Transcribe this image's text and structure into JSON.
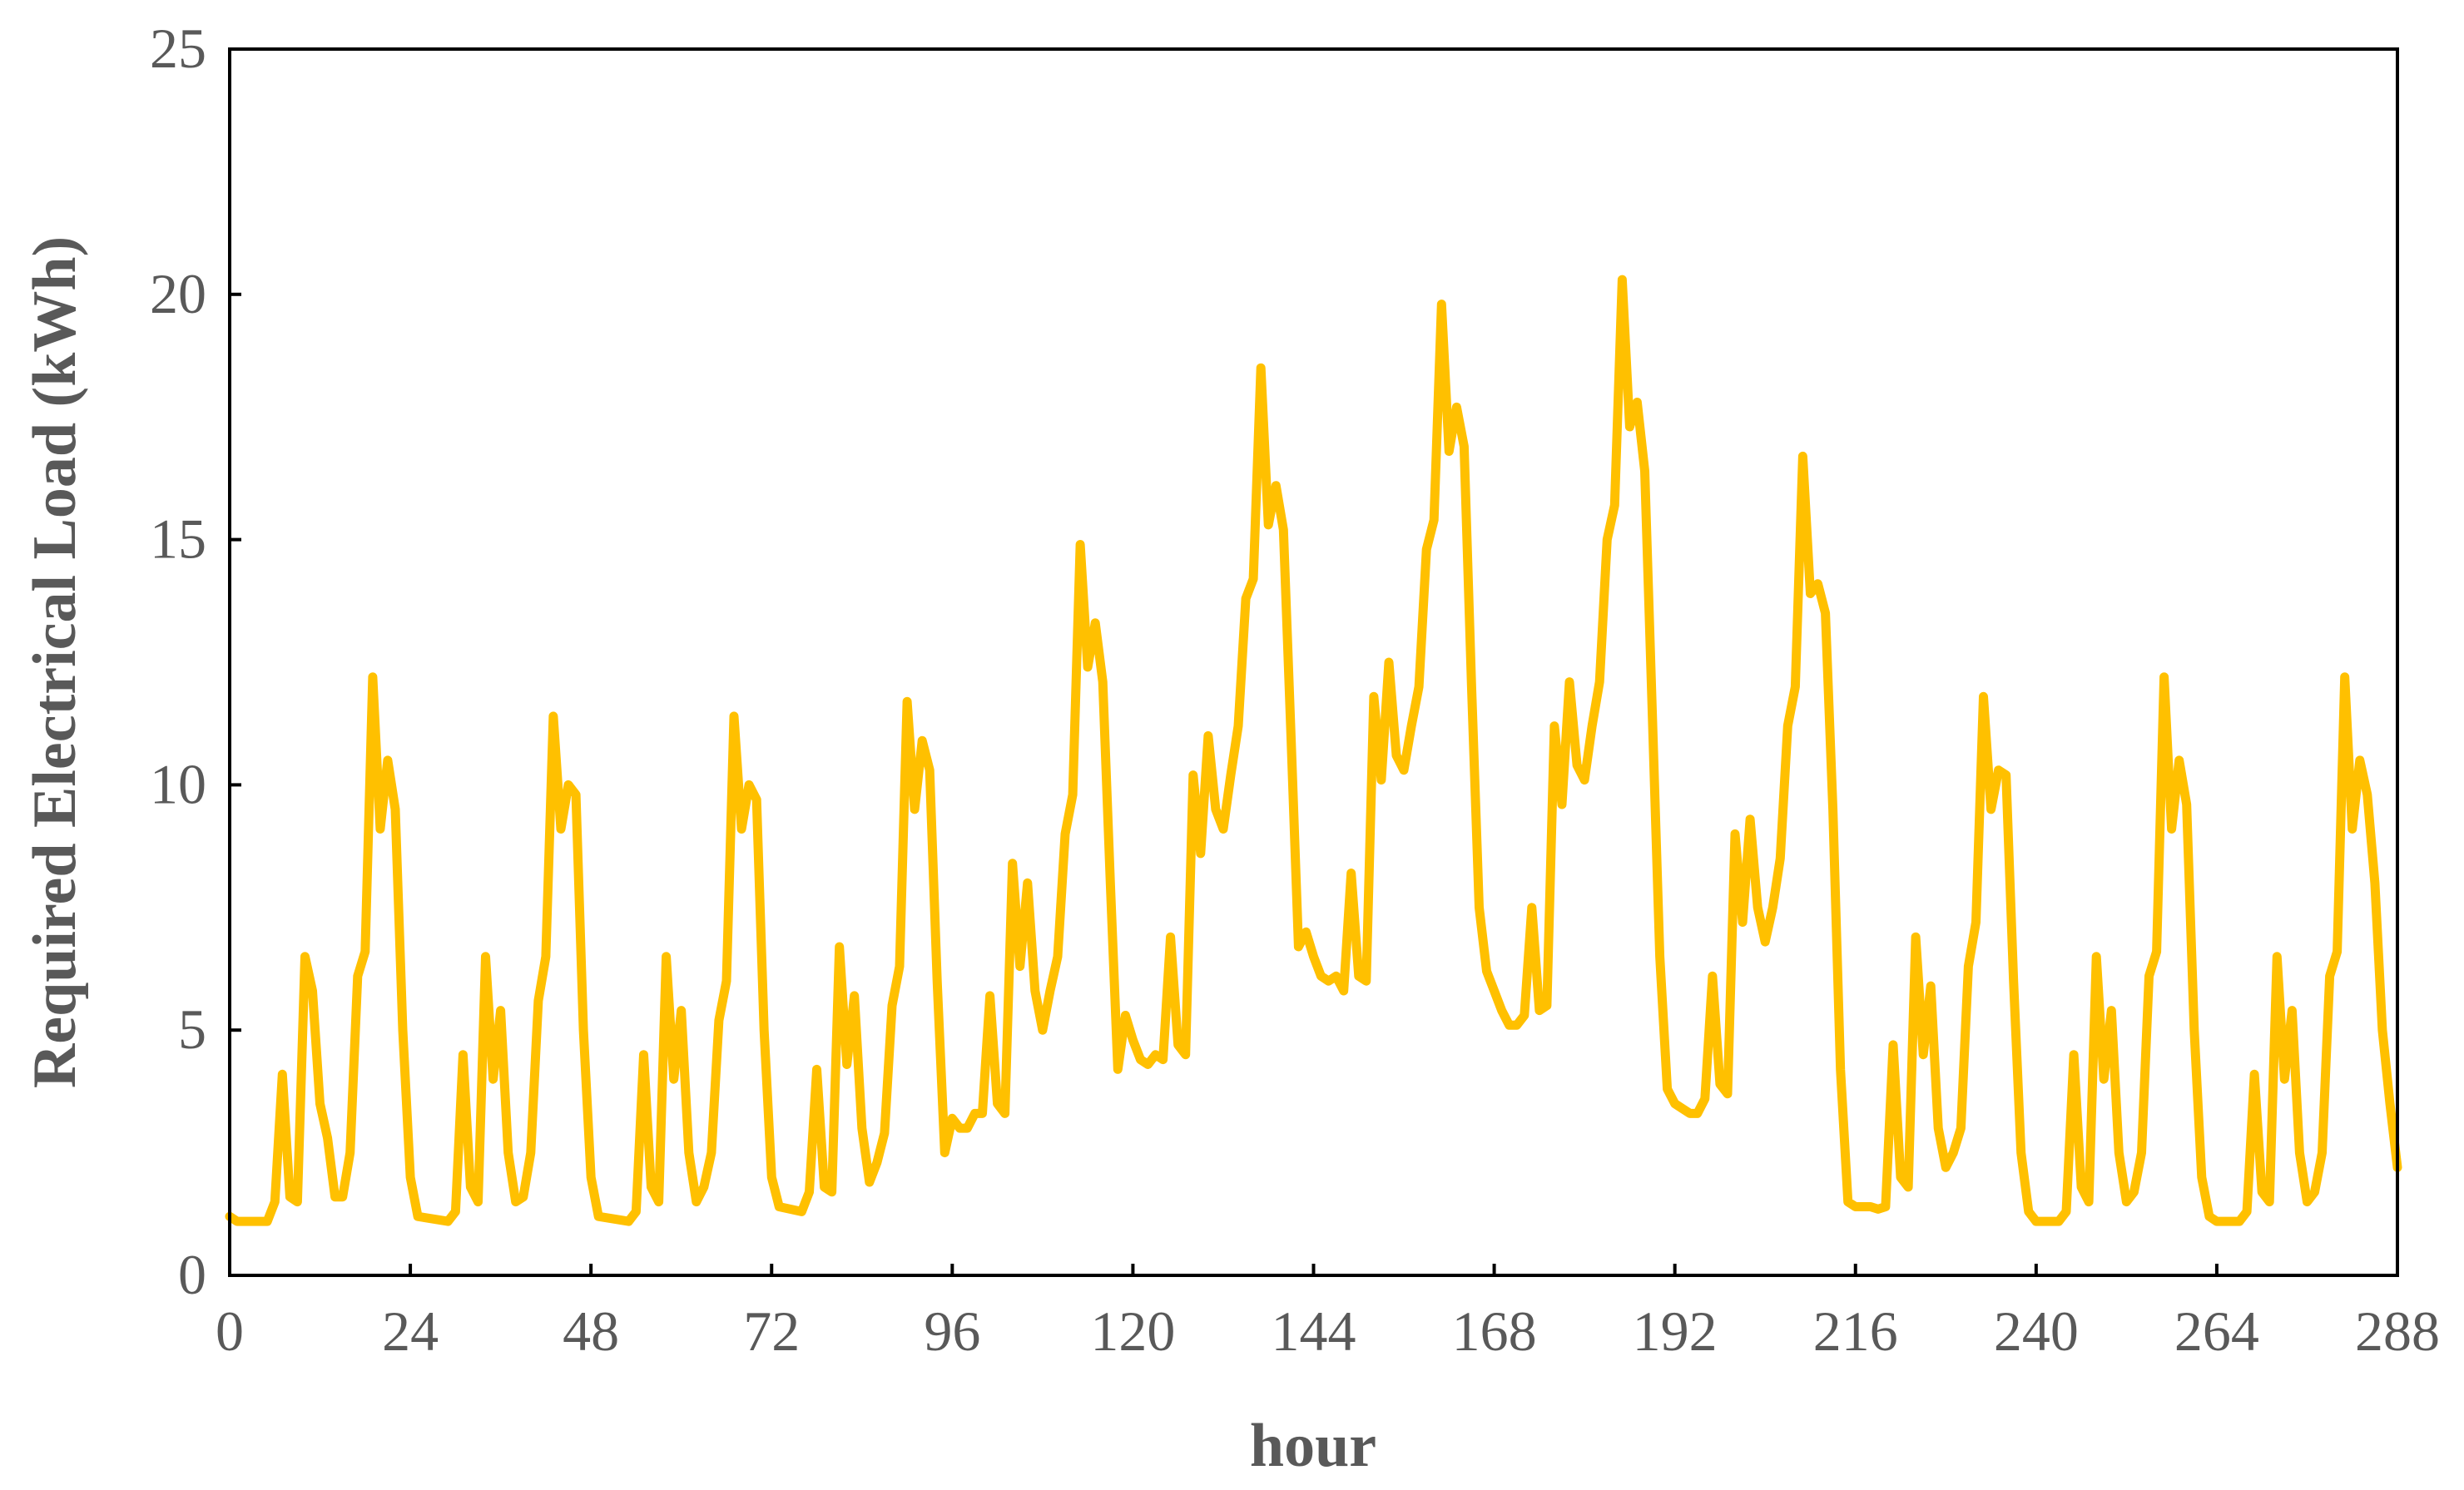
{
  "chart_data": {
    "type": "line",
    "xlabel": "hour",
    "ylabel": "Required Electrical Load (kWh)",
    "color": "#FFC000",
    "x": [
      0,
      1,
      5,
      6,
      7,
      8,
      9,
      10,
      11,
      12,
      13,
      14,
      15,
      16,
      17,
      18,
      19,
      20,
      21,
      22,
      23,
      24,
      25,
      29,
      30,
      31,
      32,
      33,
      34,
      35,
      36,
      37,
      38,
      39,
      40,
      41,
      42,
      43,
      44,
      45,
      46,
      47,
      48,
      49,
      53,
      54,
      55,
      56,
      57,
      58,
      59,
      60,
      61,
      62,
      63,
      64,
      65,
      66,
      67,
      68,
      69,
      70,
      71,
      72,
      73,
      76,
      77,
      78,
      79,
      80,
      81,
      82,
      83,
      84,
      85,
      86,
      87,
      88,
      89,
      90,
      91,
      92,
      93,
      94,
      95,
      96,
      97,
      98,
      99,
      100,
      101,
      102,
      103,
      104,
      105,
      106,
      107,
      108,
      109,
      110,
      111,
      112,
      113,
      114,
      115,
      116,
      117,
      118,
      119,
      120,
      121,
      122,
      123,
      124,
      125,
      126,
      127,
      128,
      129,
      130,
      131,
      132,
      133,
      134,
      135,
      136,
      137,
      138,
      139,
      140,
      141,
      142,
      143,
      144,
      145,
      146,
      147,
      148,
      149,
      150,
      151,
      152,
      153,
      154,
      155,
      156,
      157,
      158,
      159,
      160,
      161,
      162,
      163,
      164,
      165,
      166,
      167,
      168,
      169,
      170,
      171,
      172,
      173,
      174,
      175,
      176,
      177,
      178,
      179,
      180,
      181,
      182,
      183,
      184,
      185,
      186,
      187,
      188,
      189,
      190,
      191,
      192,
      193,
      194,
      195,
      196,
      197,
      198,
      199,
      200,
      201,
      202,
      203,
      204,
      205,
      206,
      207,
      208,
      209,
      210,
      211,
      212,
      213,
      214,
      215,
      216,
      217,
      218,
      219,
      220,
      221,
      222,
      223,
      224,
      225,
      226,
      227,
      228,
      229,
      230,
      231,
      232,
      233,
      234,
      235,
      236,
      237,
      238,
      239,
      240,
      243,
      244,
      245,
      246,
      247,
      248,
      249,
      250,
      251,
      252,
      253,
      254,
      255,
      256,
      257,
      258,
      259,
      260,
      261,
      262,
      263,
      264,
      267,
      268,
      269,
      270,
      271,
      272,
      273,
      274,
      275,
      276,
      277,
      278,
      279,
      280,
      281,
      282,
      283,
      284,
      285,
      286,
      287,
      288
    ],
    "values": [
      1.2,
      1.1,
      1.1,
      1.5,
      4.1,
      1.6,
      1.5,
      6.5,
      5.8,
      3.5,
      2.8,
      1.6,
      1.6,
      2.5,
      6.1,
      6.6,
      12.2,
      9.1,
      10.5,
      9.5,
      5,
      2,
      1.2,
      1.1,
      1.3,
      4.5,
      1.8,
      1.5,
      6.5,
      4.0,
      5.4,
      2.5,
      1.5,
      1.6,
      2.5,
      5.6,
      6.5,
      11.4,
      9.1,
      10,
      9.8,
      5,
      2,
      1.2,
      1.1,
      1.3,
      4.5,
      1.8,
      1.5,
      6.5,
      4,
      5.4,
      2.5,
      1.5,
      1.8,
      2.5,
      5.2,
      6,
      11.4,
      9.1,
      10,
      9.7,
      5,
      2,
      1.4,
      1.3,
      1.7,
      4.2,
      1.8,
      1.7,
      6.7,
      4.3,
      5.7,
      3,
      1.9,
      2.3,
      2.9,
      5.5,
      6.3,
      11.7,
      9.5,
      10.9,
      10.3,
      6,
      2.5,
      3.2,
      3,
      3,
      3.3,
      3.3,
      5.7,
      3.5,
      3.3,
      8.4,
      6.3,
      8,
      5.8,
      5,
      5.8,
      6.5,
      9,
      9.8,
      14.9,
      12.4,
      13.3,
      12.1,
      8,
      4.2,
      5.3,
      4.8,
      4.4,
      4.3,
      4.5,
      4.4,
      6.9,
      4.7,
      4.5,
      10.2,
      8.6,
      11,
      9.5,
      9.1,
      10.2,
      11.2,
      13.8,
      14.2,
      18.5,
      15.3,
      16.1,
      15.2,
      11,
      6.7,
      7,
      6.5,
      6.1,
      6,
      6.1,
      5.8,
      8.2,
      6.1,
      6,
      11.8,
      10.1,
      12.5,
      10.6,
      10.3,
      11.2,
      12,
      14.8,
      15.4,
      19.8,
      16.8,
      17.7,
      16.9,
      12,
      7.5,
      6.2,
      5.8,
      5.4,
      5.1,
      5.1,
      5.3,
      7.5,
      5.4,
      5.5,
      11.2,
      9.6,
      12.1,
      10.4,
      10.1,
      11.2,
      12.1,
      15,
      15.7,
      20.3,
      17.3,
      17.8,
      16.4,
      11.5,
      6.5,
      3.8,
      3.5,
      3.4,
      3.3,
      3.3,
      3.6,
      6.1,
      3.9,
      3.7,
      9,
      7.2,
      9.3,
      7.5,
      6.8,
      7.5,
      8.5,
      11.2,
      12,
      16.7,
      13.9,
      14.1,
      13.5,
      9.5,
      4.2,
      1.5,
      1.4,
      1.4,
      1.4,
      1.35,
      1.4,
      4.7,
      2,
      1.8,
      6.9,
      4.5,
      5.9,
      3,
      2.2,
      2.5,
      3,
      6.3,
      7.2,
      11.8,
      9.5,
      10.3,
      10.2,
      6,
      2.5,
      1.3,
      1.1,
      1.1,
      1.3,
      4.5,
      1.8,
      1.5,
      6.5,
      4,
      5.4,
      2.5,
      1.5,
      1.7,
      2.5,
      6.1,
      6.6,
      12.2,
      9.1,
      10.5,
      9.6,
      5,
      2,
      1.2,
      1.1,
      1.1,
      1.3,
      4.1,
      1.7,
      1.5,
      6.5,
      4,
      5.4,
      2.5,
      1.5,
      1.7,
      2.5,
      6.1,
      6.6,
      12.2,
      9.1,
      10.5,
      9.8,
      8,
      5,
      3.5,
      2.2
    ],
    "xlim": [
      0,
      288
    ],
    "xticks": [
      0,
      24,
      48,
      72,
      96,
      120,
      144,
      168,
      192,
      216,
      240,
      264,
      288
    ],
    "ylim": [
      0,
      25
    ],
    "yticks": [
      0,
      5,
      10,
      15,
      20,
      25
    ],
    "grid": false
  }
}
